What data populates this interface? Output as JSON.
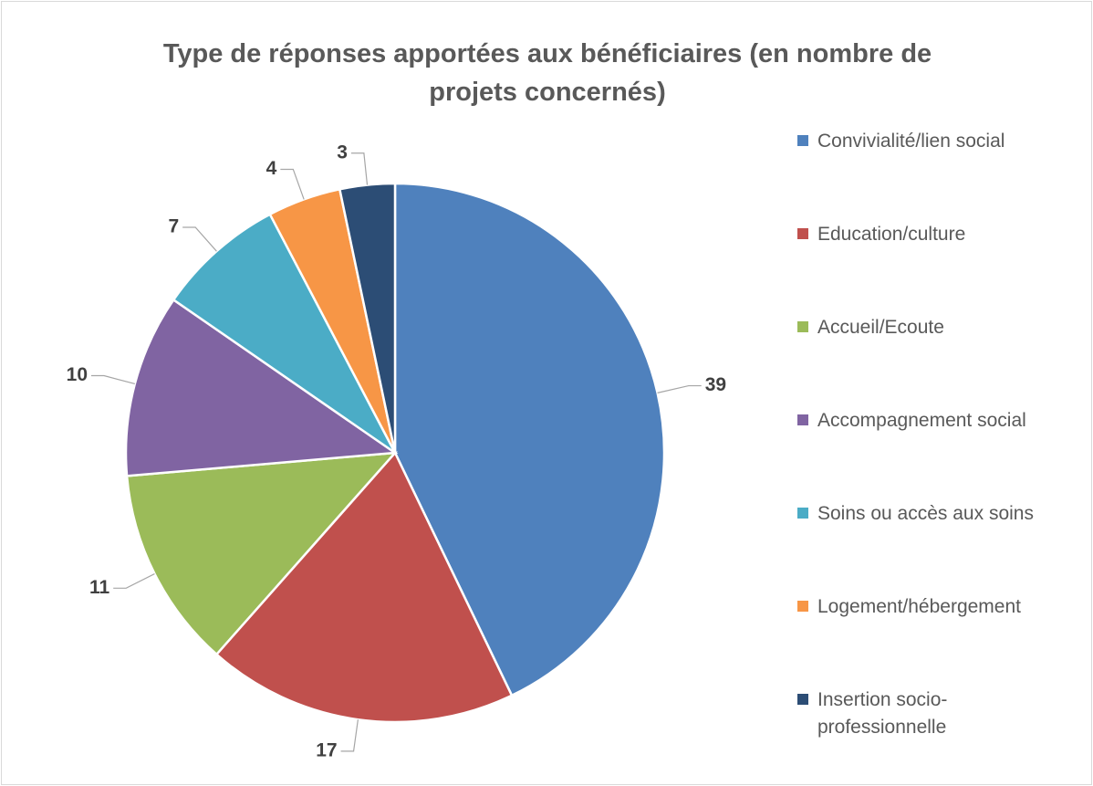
{
  "chart_data": {
    "type": "pie",
    "title": "Type de réponses apportées aux bénéficiaires (en nombre de projets concernés)",
    "categories": [
      "Convivialité/lien social",
      "Education/culture",
      "Accueil/Ecoute",
      "Accompagnement social",
      "Soins ou accès aux soins",
      "Logement/hébergement",
      "Insertion socio-professionnelle"
    ],
    "values": [
      39,
      17,
      11,
      10,
      7,
      4,
      3
    ],
    "colors": [
      "#4f81bd",
      "#c0504d",
      "#9bbb59",
      "#8064a2",
      "#4bacc6",
      "#f79646",
      "#2c4d75"
    ],
    "legend": "right"
  }
}
